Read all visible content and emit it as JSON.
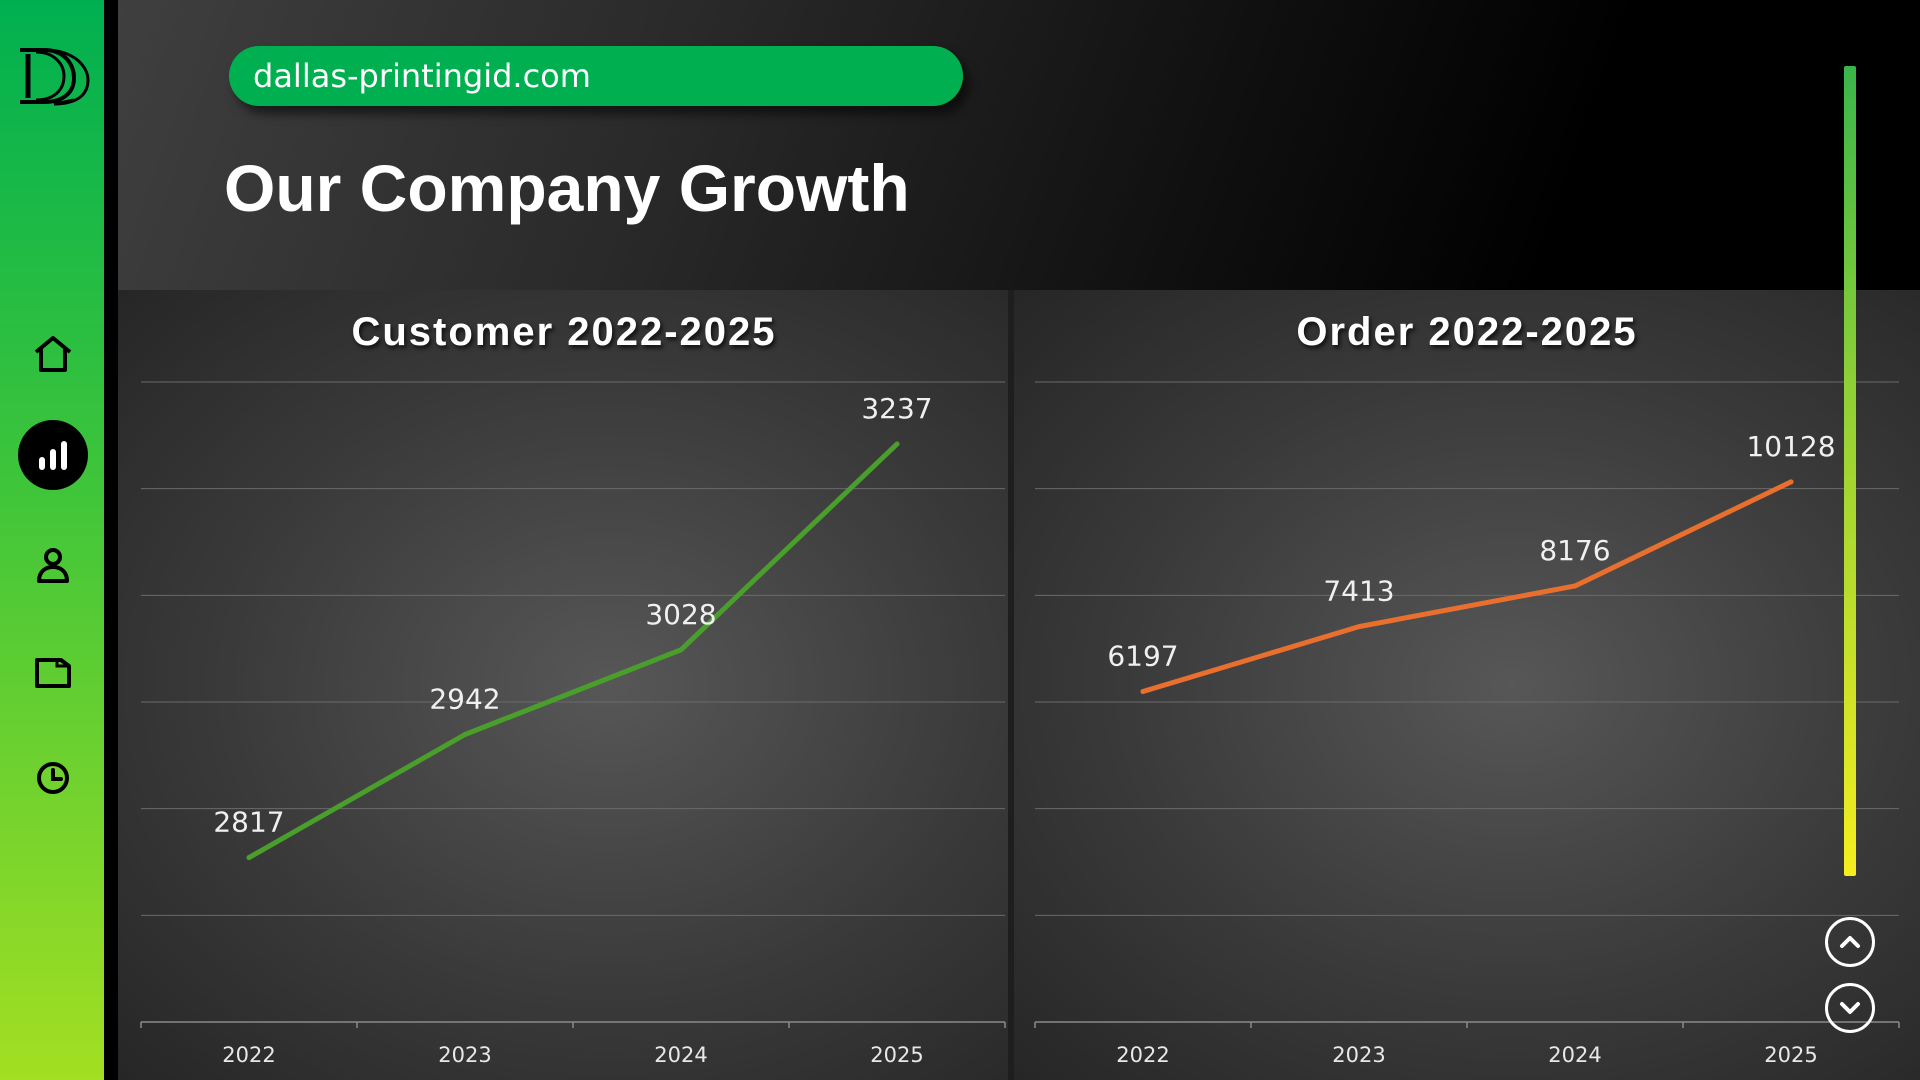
{
  "header": {
    "url": "dallas-printingid.com",
    "title": "Our Company Growth"
  },
  "sidebar": {
    "logo": "dallas-printing-logo",
    "items": [
      {
        "icon": "home-icon",
        "active": false
      },
      {
        "icon": "bar-chart-icon",
        "active": true
      },
      {
        "icon": "user-icon",
        "active": false
      },
      {
        "icon": "wallet-icon",
        "active": false
      },
      {
        "icon": "clock-icon",
        "active": false
      }
    ]
  },
  "colors": {
    "sidebar_top": "#00b050",
    "sidebar_bottom": "#a3df22",
    "customer_line": "#4a9e2c",
    "order_line": "#e86f2d",
    "scroll_top": "#3ab54a",
    "scroll_bottom": "#f5ee1e"
  },
  "scroll": {
    "up_icon": "chevron-up-icon",
    "down_icon": "chevron-down-icon"
  },
  "chart_data": [
    {
      "type": "line",
      "title": "Customer 2022-2025",
      "categories": [
        "2022",
        "2023",
        "2024",
        "2025"
      ],
      "values": [
        2817,
        2942,
        3028,
        3237
      ],
      "data_labels": [
        "2817",
        "2942",
        "3028",
        "3237"
      ],
      "ylim": [
        2650,
        3300
      ],
      "grid": true,
      "legend": "none"
    },
    {
      "type": "line",
      "title": "Order 2022-2025",
      "categories": [
        "2022",
        "2023",
        "2024",
        "2025"
      ],
      "values": [
        6197,
        7413,
        8176,
        10128
      ],
      "data_labels": [
        "6197",
        "7413",
        "8176",
        "10128"
      ],
      "ylim": [
        0,
        12000
      ],
      "grid": true,
      "legend": "none"
    }
  ]
}
